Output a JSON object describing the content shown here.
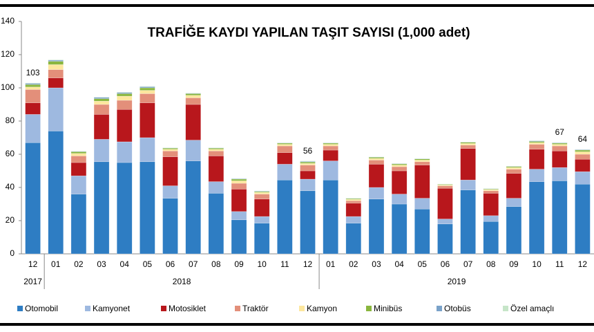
{
  "chart_data": {
    "type": "stacked_bar",
    "title": "TRAFİĞE KAYDI YAPILAN TAŞIT SAYISI (1,000 adet)",
    "categories": [
      "12",
      "01",
      "02",
      "03",
      "04",
      "05",
      "06",
      "07",
      "08",
      "09",
      "10",
      "11",
      "12",
      "01",
      "02",
      "03",
      "04",
      "05",
      "06",
      "07",
      "08",
      "09",
      "10",
      "11",
      "12"
    ],
    "year_groups": [
      {
        "label": "2017",
        "count": 1
      },
      {
        "label": "2018",
        "count": 12
      },
      {
        "label": "2019",
        "count": 12
      }
    ],
    "series": [
      {
        "name": "Otomobil",
        "color": "#2e7dc3",
        "values": [
          67,
          74,
          36,
          55.5,
          55,
          55.5,
          33.5,
          56,
          36.5,
          20.5,
          18.5,
          44.5,
          38,
          44.5,
          18.5,
          33,
          30,
          27,
          18,
          38.5,
          19.5,
          28.5,
          43.5,
          44,
          42
        ]
      },
      {
        "name": "Kamyonet",
        "color": "#9eb9e0",
        "values": [
          17,
          26,
          11,
          13.5,
          12.5,
          14.5,
          7.5,
          12.5,
          7,
          5,
          4,
          9.5,
          7,
          11.5,
          4,
          7,
          6,
          6.5,
          3,
          6,
          3.5,
          5,
          7.5,
          8,
          7.5
        ]
      },
      {
        "name": "Motosiklet",
        "color": "#b8171c",
        "values": [
          7,
          6,
          8,
          15,
          19.5,
          21,
          17.5,
          21.5,
          15.5,
          13.5,
          10.5,
          7,
          5,
          6.5,
          8,
          14,
          14,
          20,
          18.5,
          19,
          13.5,
          15,
          12,
          10,
          7.5
        ]
      },
      {
        "name": "Traktör",
        "color": "#e38f7a",
        "values": [
          8,
          5,
          4,
          6,
          5.5,
          5.5,
          3.5,
          4,
          3,
          3.5,
          3,
          4,
          3.5,
          2.5,
          1.5,
          2.5,
          2.5,
          2,
          1.5,
          2,
          1.5,
          2.5,
          3,
          3,
          3
        ]
      },
      {
        "name": "Kamyon",
        "color": "#fde79e",
        "values": [
          1.5,
          3,
          1.5,
          2,
          2.5,
          2,
          1,
          1.5,
          1,
          1.5,
          1,
          1,
          1,
          1,
          0.8,
          1,
          1,
          1,
          0.5,
          1,
          0.7,
          1,
          1,
          1,
          1.5
        ]
      },
      {
        "name": "Minibüs",
        "color": "#8ab63e",
        "values": [
          1.5,
          2,
          1,
          1.5,
          1.5,
          1.5,
          0.7,
          1,
          0.7,
          1,
          0.5,
          0.7,
          0.8,
          0.7,
          0.5,
          0.7,
          0.7,
          0.7,
          0.4,
          0.7,
          0.4,
          0.6,
          0.7,
          0.7,
          1
        ]
      },
      {
        "name": "Otobüs",
        "color": "#7aa2c9",
        "values": [
          0.7,
          0.7,
          0.3,
          0.8,
          0.7,
          0.7,
          0.2,
          0.3,
          0.2,
          0.3,
          0.3,
          0.2,
          0.4,
          0.2,
          0.2,
          0.2,
          0.2,
          0.2,
          0.1,
          0.2,
          0.2,
          0.2,
          0.4,
          0.3,
          0.3
        ]
      },
      {
        "name": "Özel amaçlı",
        "color": "#c6e5c8",
        "values": [
          0.3,
          0.3,
          0.2,
          0.2,
          0.3,
          0.3,
          0.1,
          0.2,
          0.1,
          0.2,
          0.2,
          0.1,
          0.3,
          0.1,
          0.1,
          0.1,
          0.1,
          0.1,
          0.1,
          0.1,
          0.1,
          0.1,
          0.2,
          0.1,
          0.2
        ]
      }
    ],
    "annotations": [
      {
        "index": 0,
        "label": "103"
      },
      {
        "index": 12,
        "label": "56"
      },
      {
        "index": 23,
        "label": "67"
      },
      {
        "index": 24,
        "label": "64"
      }
    ],
    "ylim": [
      0,
      140
    ],
    "yticks": [
      0,
      20,
      40,
      60,
      80,
      100,
      120,
      140
    ],
    "grid": false
  }
}
